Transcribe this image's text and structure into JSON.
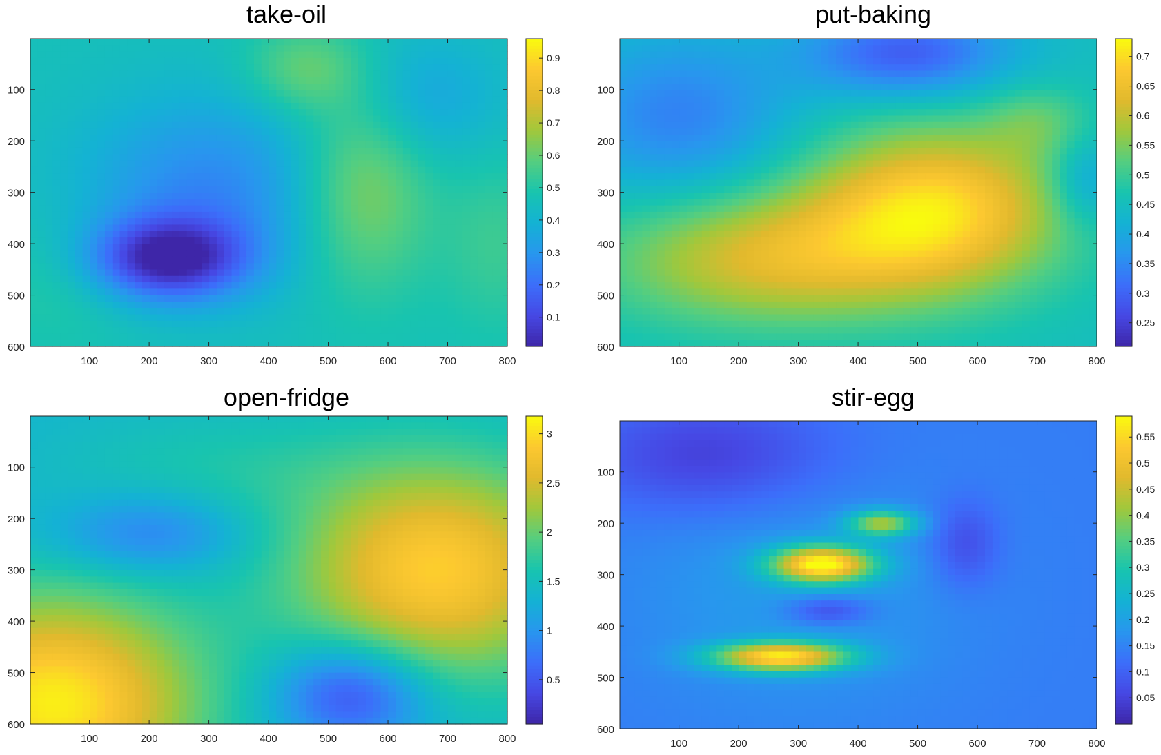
{
  "chart_data": [
    {
      "type": "heatmap",
      "title": "take-oil",
      "xlim": [
        1,
        800
      ],
      "ylim": [
        1,
        600
      ],
      "y_reversed": true,
      "x_ticks": [
        100,
        200,
        300,
        400,
        500,
        600,
        700,
        800
      ],
      "y_ticks": [
        100,
        200,
        300,
        400,
        500,
        600
      ],
      "colorbar": {
        "min": 0.01,
        "max": 0.96,
        "ticks": [
          0.1,
          0.2,
          0.3,
          0.4,
          0.5,
          0.6,
          0.7,
          0.8,
          0.9
        ]
      },
      "colormap": "parula",
      "base_value": 0.46,
      "features": [
        {
          "x": 230,
          "y": 430,
          "sx": 90,
          "sy": 55,
          "value": -0.42
        },
        {
          "x": 300,
          "y": 300,
          "sx": 150,
          "sy": 130,
          "value": -0.2
        },
        {
          "x": 560,
          "y": 290,
          "sx": 80,
          "sy": 140,
          "value": 0.2
        },
        {
          "x": 460,
          "y": 60,
          "sx": 70,
          "sy": 60,
          "value": 0.14
        },
        {
          "x": 660,
          "y": 120,
          "sx": 90,
          "sy": 90,
          "value": -0.12
        },
        {
          "x": 60,
          "y": 470,
          "sx": 90,
          "sy": 90,
          "value": 0.06
        },
        {
          "x": 780,
          "y": 400,
          "sx": 60,
          "sy": 120,
          "value": 0.08
        }
      ]
    },
    {
      "type": "heatmap",
      "title": "put-baking",
      "xlim": [
        1,
        800
      ],
      "ylim": [
        1,
        600
      ],
      "y_reversed": true,
      "x_ticks": [
        100,
        200,
        300,
        400,
        500,
        600,
        700,
        800
      ],
      "y_ticks": [
        100,
        200,
        300,
        400,
        500,
        600
      ],
      "colorbar": {
        "min": 0.21,
        "max": 0.73,
        "ticks": [
          0.25,
          0.3,
          0.35,
          0.4,
          0.45,
          0.5,
          0.55,
          0.6,
          0.65,
          0.7
        ]
      },
      "colormap": "parula",
      "base_value": 0.45,
      "features": [
        {
          "x": 530,
          "y": 330,
          "sx": 150,
          "sy": 110,
          "value": 0.24
        },
        {
          "x": 250,
          "y": 430,
          "sx": 190,
          "sy": 90,
          "value": 0.17
        },
        {
          "x": 100,
          "y": 150,
          "sx": 130,
          "sy": 110,
          "value": -0.11
        },
        {
          "x": 480,
          "y": 30,
          "sx": 120,
          "sy": 60,
          "value": -0.16
        },
        {
          "x": 780,
          "y": 280,
          "sx": 40,
          "sy": 60,
          "value": -0.08
        },
        {
          "x": 700,
          "y": 160,
          "sx": 60,
          "sy": 50,
          "value": 0.06
        }
      ]
    },
    {
      "type": "heatmap",
      "title": "open-fridge",
      "xlim": [
        1,
        800
      ],
      "ylim": [
        1,
        600
      ],
      "y_reversed": true,
      "x_ticks": [
        100,
        200,
        300,
        400,
        500,
        600,
        700,
        800
      ],
      "y_ticks": [
        100,
        200,
        300,
        400,
        500,
        600
      ],
      "colorbar": {
        "min": 0.05,
        "max": 3.18,
        "ticks": [
          0.5,
          1,
          1.5,
          2,
          2.5,
          3
        ]
      },
      "colormap": "parula",
      "base_value": 1.35,
      "features": [
        {
          "x": 680,
          "y": 300,
          "sx": 170,
          "sy": 150,
          "value": 1.55
        },
        {
          "x": 40,
          "y": 560,
          "sx": 170,
          "sy": 150,
          "value": 1.75
        },
        {
          "x": 540,
          "y": 540,
          "sx": 90,
          "sy": 70,
          "value": -1.05
        },
        {
          "x": 200,
          "y": 230,
          "sx": 110,
          "sy": 55,
          "value": -0.6
        },
        {
          "x": 300,
          "y": 100,
          "sx": 180,
          "sy": 80,
          "value": 0.25
        }
      ]
    },
    {
      "type": "heatmap",
      "title": "stir-egg",
      "xlim": [
        1,
        800
      ],
      "ylim": [
        1,
        600
      ],
      "y_reversed": true,
      "x_ticks": [
        100,
        200,
        300,
        400,
        500,
        600,
        700,
        800
      ],
      "y_ticks": [
        100,
        200,
        300,
        400,
        500,
        600
      ],
      "colorbar": {
        "min": 0.0,
        "max": 0.59,
        "ticks": [
          0.05,
          0.1,
          0.15,
          0.2,
          0.25,
          0.3,
          0.35,
          0.4,
          0.45,
          0.5,
          0.55
        ]
      },
      "colormap": "parula",
      "base_value": 0.14,
      "features": [
        {
          "x": 340,
          "y": 280,
          "sx": 60,
          "sy": 25,
          "value": 0.43
        },
        {
          "x": 270,
          "y": 460,
          "sx": 80,
          "sy": 20,
          "value": 0.4
        },
        {
          "x": 440,
          "y": 200,
          "sx": 40,
          "sy": 18,
          "value": 0.26
        },
        {
          "x": 150,
          "y": 70,
          "sx": 150,
          "sy": 80,
          "value": -0.1
        },
        {
          "x": 350,
          "y": 370,
          "sx": 50,
          "sy": 20,
          "value": -0.1
        },
        {
          "x": 580,
          "y": 240,
          "sx": 40,
          "sy": 60,
          "value": -0.08
        },
        {
          "x": 300,
          "y": 330,
          "sx": 200,
          "sy": 170,
          "value": 0.05
        }
      ]
    }
  ]
}
